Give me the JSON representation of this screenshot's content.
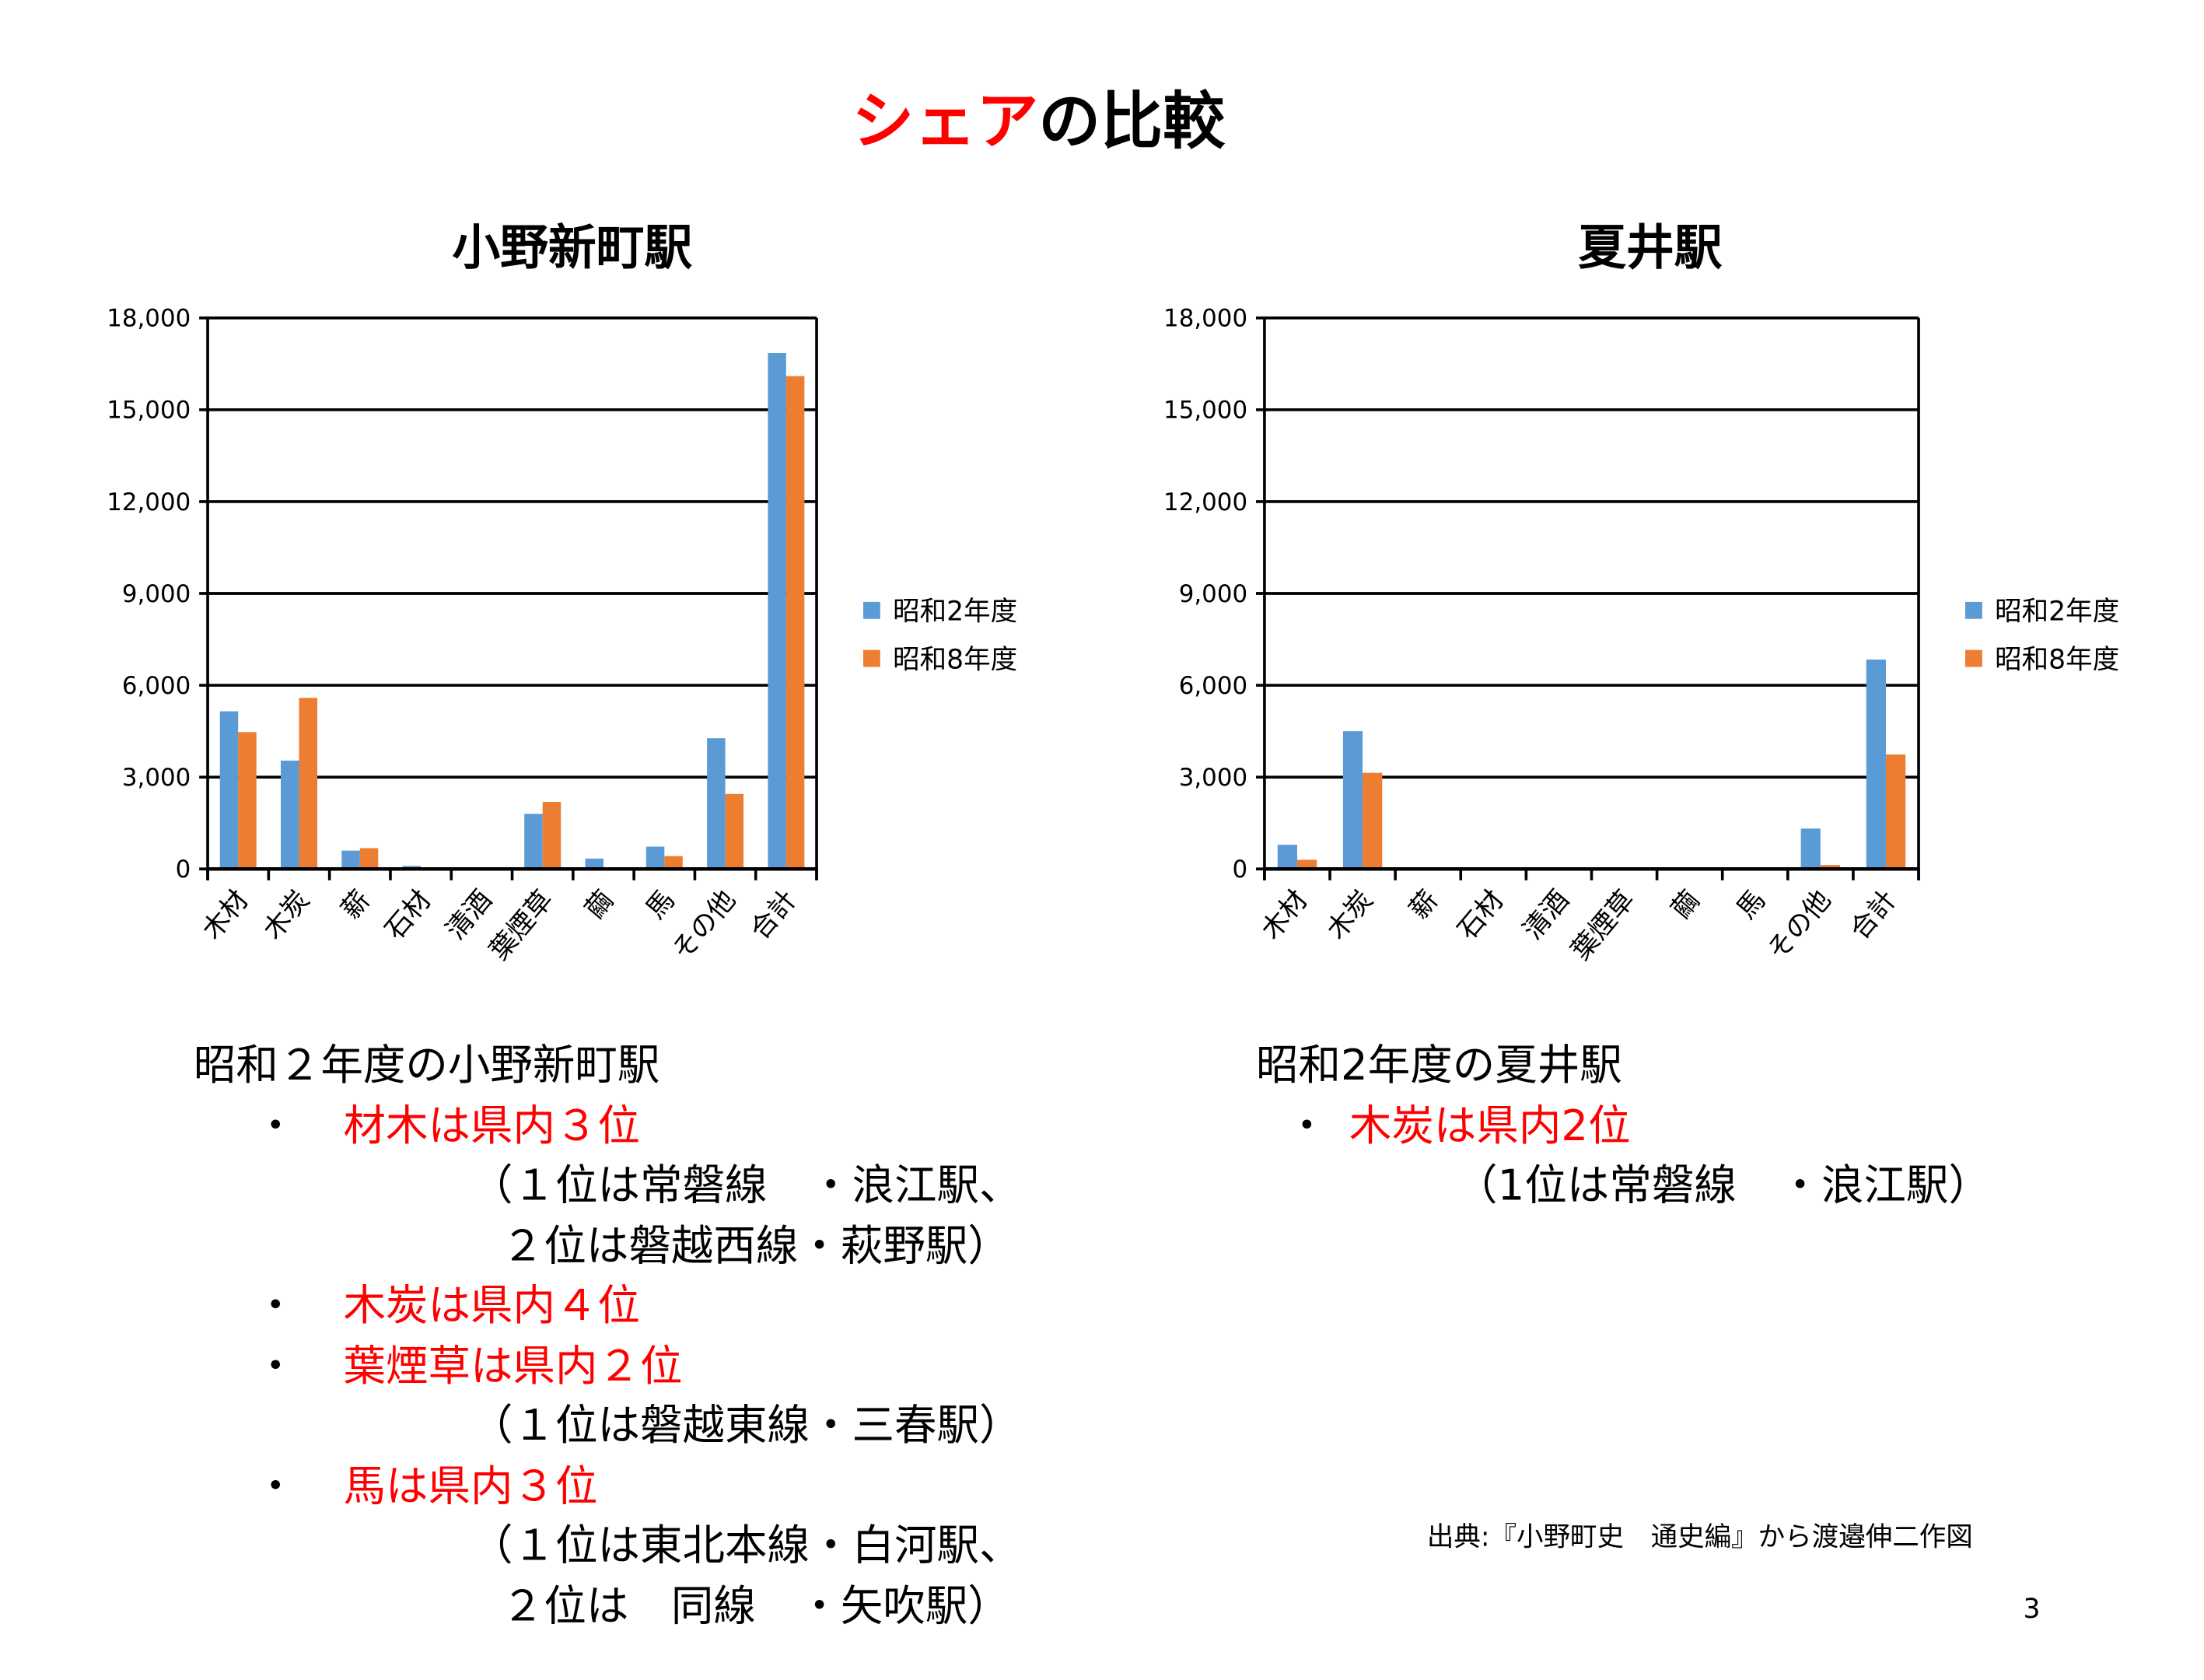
{
  "slide": {
    "title_red": "シェア",
    "title_black": "の比較",
    "page_number": "3",
    "source": "出典:『小野町史　通史編』から渡邉伸二作図"
  },
  "colors": {
    "series1": "#5b9bd5",
    "series2": "#ed7d31",
    "accent": "#ff0000"
  },
  "chart_data": [
    {
      "type": "bar",
      "title": "小野新町駅",
      "categories": [
        "木材",
        "木炭",
        "薪",
        "石材",
        "清酒",
        "葉煙草",
        "繭",
        "馬",
        "その他",
        "合計"
      ],
      "series": [
        {
          "name": "昭和2年度",
          "values": [
            5150,
            3540,
            600,
            100,
            50,
            1800,
            340,
            730,
            4270,
            16850
          ]
        },
        {
          "name": "昭和8年度",
          "values": [
            4470,
            5590,
            680,
            50,
            0,
            2190,
            30,
            420,
            2450,
            16100
          ]
        }
      ],
      "ylim": [
        0,
        18000
      ],
      "yticks": [
        "0",
        "3,000",
        "6,000",
        "9,000",
        "12,000",
        "15,000",
        "18,000"
      ],
      "grid": true,
      "legend": "right",
      "xlabel": "",
      "ylabel": ""
    },
    {
      "type": "bar",
      "title": "夏井駅",
      "categories": [
        "木材",
        "木炭",
        "薪",
        "石材",
        "清酒",
        "葉煙草",
        "繭",
        "馬",
        "その他",
        "合計"
      ],
      "series": [
        {
          "name": "昭和2年度",
          "values": [
            790,
            4500,
            0,
            0,
            0,
            0,
            0,
            0,
            1320,
            6840
          ]
        },
        {
          "name": "昭和8年度",
          "values": [
            300,
            3140,
            0,
            0,
            0,
            0,
            0,
            0,
            130,
            3740
          ]
        }
      ],
      "ylim": [
        0,
        18000
      ],
      "yticks": [
        "0",
        "3,000",
        "6,000",
        "9,000",
        "12,000",
        "15,000",
        "18,000"
      ],
      "grid": true,
      "legend": "right",
      "xlabel": "",
      "ylabel": ""
    }
  ],
  "left_notes": {
    "heading": "昭和２年度の小野新町駅",
    "bullet": "・",
    "items": [
      {
        "label": "材木は県内３位",
        "details": [
          "（１位は常磐線　・浪江駅、",
          "２位は磐越西線・萩野駅）"
        ]
      },
      {
        "label": "木炭は県内４位",
        "details": []
      },
      {
        "label": "葉煙草は県内２位",
        "details": [
          "（１位は磐越東線・三春駅）"
        ]
      },
      {
        "label": "馬は県内３位",
        "details": [
          "（１位は東北本線・白河駅、",
          "２位は　同線　・矢吹駅）"
        ]
      }
    ]
  },
  "right_notes": {
    "heading": "昭和2年度の夏井駅",
    "bullet": "・",
    "items": [
      {
        "label": "木炭は県内2位",
        "details": [
          "（1位は常磐線　・浪江駅）"
        ]
      }
    ]
  }
}
